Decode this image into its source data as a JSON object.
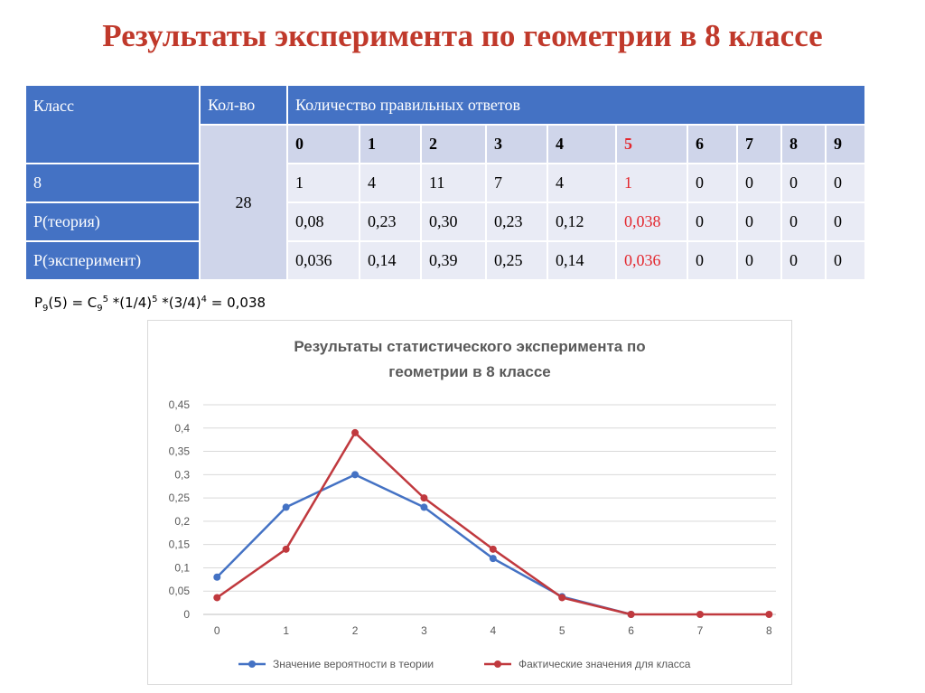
{
  "title": "Результаты эксперимента по геометрии в 8 классе",
  "table": {
    "header": {
      "class_label": "Класс",
      "count_label": "Кол-во",
      "answers_label": "Количество правильных ответов"
    },
    "answer_counts": [
      "0",
      "1",
      "2",
      "3",
      "4",
      "5",
      "6",
      "7",
      "8",
      "9"
    ],
    "count_value": "28",
    "rows": [
      {
        "label": "8",
        "values": [
          "1",
          "4",
          "11",
          "7",
          "4",
          "1",
          "0",
          "0",
          "0",
          "0"
        ]
      },
      {
        "label": "P(теория)",
        "values": [
          "0,08",
          "0,23",
          "0,30",
          "0,23",
          "0,12",
          "0,038",
          "0",
          "0",
          "0",
          "0"
        ]
      },
      {
        "label": "P(эксперимент)",
        "values": [
          "0,036",
          "0,14",
          "0,39",
          "0,25",
          "0,14",
          "0,036",
          "0",
          "0",
          "0",
          "0"
        ]
      }
    ],
    "highlight_color": "#e3272e"
  },
  "formula": {
    "p": "P",
    "p_sub": "9",
    "arg": "(5) = C",
    "c_sub": "9",
    "c_sup": "5",
    "part1": " *(1/4)",
    "sup1": "5",
    "part2": " *(3/4)",
    "sup2": "4",
    "result": " = 0,038"
  },
  "chart_data": {
    "type": "line",
    "title": "Результаты статистического эксперимента по геометрии в 8 классе",
    "title_lines": [
      "Результаты статистического эксперимента по",
      "геометрии в 8 классе"
    ],
    "x": [
      0,
      1,
      2,
      3,
      4,
      5,
      6,
      7,
      8
    ],
    "yticks": [
      "0",
      "0,05",
      "0,1",
      "0,15",
      "0,2",
      "0,25",
      "0,3",
      "0,35",
      "0,4",
      "0,45"
    ],
    "ylim": [
      0,
      0.45
    ],
    "grid": true,
    "legend_position": "bottom",
    "series": [
      {
        "name": "Значение вероятности в теории",
        "color": "#4472c4",
        "values": [
          0.08,
          0.23,
          0.3,
          0.23,
          0.12,
          0.038,
          0,
          null,
          null
        ]
      },
      {
        "name": "Фактические значения для класса",
        "color": "#c0393e",
        "values": [
          0.036,
          0.14,
          0.39,
          0.25,
          0.14,
          0.036,
          0,
          0,
          0
        ]
      }
    ]
  }
}
